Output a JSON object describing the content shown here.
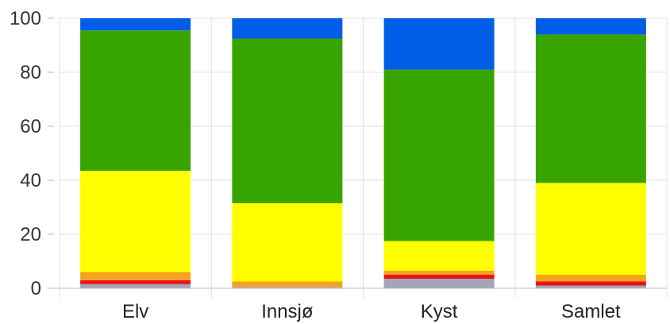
{
  "chart_data": {
    "type": "bar",
    "stacked": true,
    "categories": [
      "Elv",
      "Innsjø",
      "Kyst",
      "Samlet"
    ],
    "ylim": [
      0,
      100
    ],
    "yticks": [
      0,
      20,
      40,
      60,
      80,
      100
    ],
    "grid": true,
    "series": [
      {
        "color": "#a4a4b8",
        "values": [
          1.5,
          0.5,
          3.5,
          1.0
        ]
      },
      {
        "color": "#e8141c",
        "values": [
          1.5,
          0.0,
          1.5,
          1.5
        ]
      },
      {
        "color": "#f7a21b",
        "values": [
          3.0,
          2.0,
          1.5,
          2.5
        ]
      },
      {
        "color": "#ffff00",
        "values": [
          37.5,
          29.0,
          11.0,
          34.0
        ]
      },
      {
        "color": "#38a400",
        "values": [
          52.0,
          61.0,
          63.5,
          55.0
        ]
      },
      {
        "color": "#005ee6",
        "values": [
          4.5,
          7.5,
          19.0,
          6.0
        ]
      }
    ]
  }
}
